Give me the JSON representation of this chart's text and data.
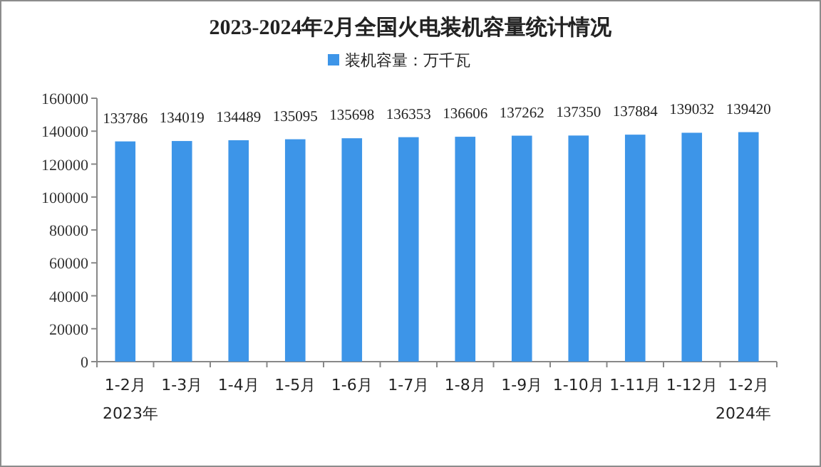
{
  "chart_data": {
    "type": "bar",
    "title": "2023-2024年2月全国火电装机容量统计情况",
    "categories": [
      "1-2月",
      "1-3月",
      "1-4月",
      "1-5月",
      "1-6月",
      "1-7月",
      "1-8月",
      "1-9月",
      "1-10月",
      "1-11月",
      "1-12月",
      "1-2月"
    ],
    "series": [
      {
        "name": "装机容量：万千瓦",
        "color": "#3d95e8",
        "values": [
          133786,
          134019,
          134489,
          135095,
          135698,
          136353,
          136606,
          137262,
          137350,
          137884,
          139032,
          139420
        ]
      }
    ],
    "ylim": [
      0,
      160000
    ],
    "yticks": [
      0,
      20000,
      40000,
      60000,
      80000,
      100000,
      120000,
      140000,
      160000
    ],
    "data_labels": true,
    "legend": "top",
    "grid": false,
    "annotations": [
      "2023年",
      "2024年"
    ]
  }
}
